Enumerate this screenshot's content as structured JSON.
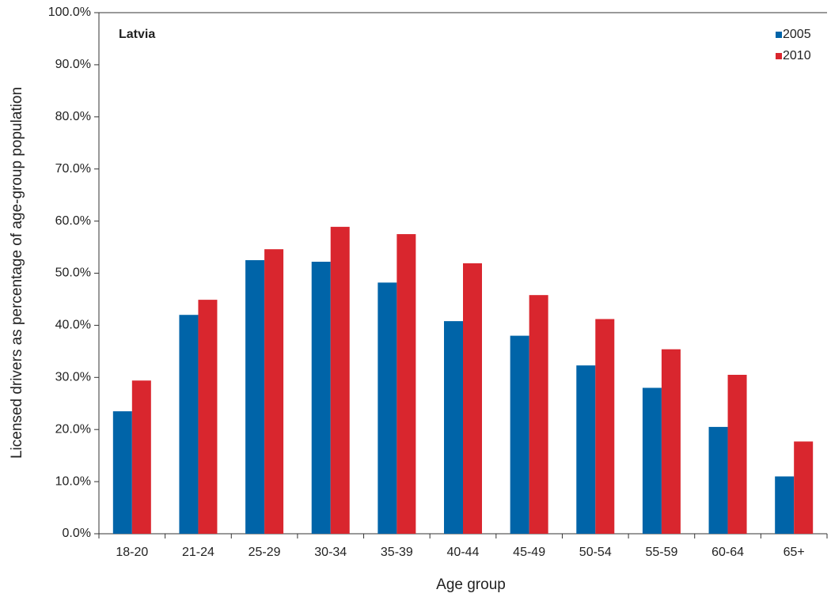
{
  "chart_data": {
    "type": "bar",
    "annotation": "Latvia",
    "x_label": "Age group",
    "y_label": "Licensed drivers as percentage of age-group population",
    "categories": [
      "18-20",
      "21-24",
      "25-29",
      "30-34",
      "35-39",
      "40-44",
      "45-49",
      "50-54",
      "55-59",
      "60-64",
      "65+"
    ],
    "series": [
      {
        "name": "2005",
        "color": "#0064a8",
        "values": [
          23.5,
          42.0,
          52.5,
          52.2,
          48.2,
          40.8,
          38.0,
          32.3,
          28.0,
          20.5,
          11.0
        ]
      },
      {
        "name": "2010",
        "color": "#d9262e",
        "values": [
          29.4,
          44.9,
          54.6,
          58.9,
          57.5,
          51.9,
          45.8,
          41.2,
          35.4,
          30.5,
          17.7
        ]
      }
    ],
    "ylim": [
      0,
      100
    ],
    "yticks": [
      {
        "value": 0,
        "label": "0.0%"
      },
      {
        "value": 10,
        "label": "10.0%"
      },
      {
        "value": 20,
        "label": "20.0%"
      },
      {
        "value": 30,
        "label": "30.0%"
      },
      {
        "value": 40,
        "label": "40.0%"
      },
      {
        "value": 50,
        "label": "50.0%"
      },
      {
        "value": 60,
        "label": "60.0%"
      },
      {
        "value": 70,
        "label": "70.0%"
      },
      {
        "value": 80,
        "label": "80.0%"
      },
      {
        "value": 90,
        "label": "90.0%"
      },
      {
        "value": 100,
        "label": "100.0%"
      }
    ],
    "legend": "top-right"
  }
}
